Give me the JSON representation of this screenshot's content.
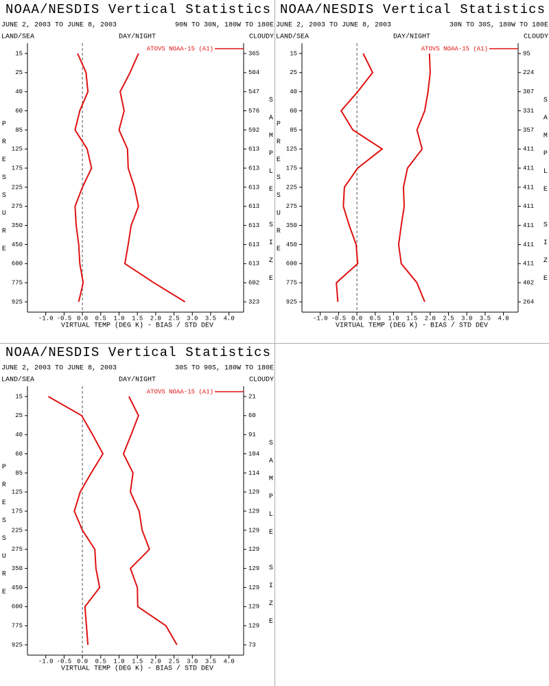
{
  "chart_data": [
    {
      "type": "line",
      "title": "NOAA/NESDIS Vertical Statistics",
      "date_range": "JUNE 2, 2003 TO JUNE 8, 2003",
      "region": "90N TO 30N, 180W TO 180E",
      "left_label": "LAND/SEA",
      "center_label": "DAY/NIGHT",
      "right_label": "CLOUDY",
      "y_label": "PRESSURE",
      "y2_label": "SAMPLE SIZE",
      "x_label": "VIRTUAL TEMP (DEG K) - BIAS / STD DEV",
      "categories": [
        "15",
        "25",
        "40",
        "60",
        "85",
        "125",
        "175",
        "225",
        "275",
        "350",
        "450",
        "600",
        "775",
        "925"
      ],
      "sample_size": [
        365,
        504,
        547,
        576,
        592,
        613,
        613,
        613,
        613,
        613,
        613,
        613,
        602,
        323
      ],
      "series": [
        {
          "name": "ATOVS NOAA-15 (A1)",
          "color": "#e01010",
          "bias": [
            -0.13,
            0.1,
            0.15,
            -0.07,
            -0.2,
            0.13,
            0.25,
            0,
            -0.2,
            -0.17,
            -0.1,
            -0.07,
            0.02,
            -0.1
          ],
          "std_dev": [
            1.53,
            1.3,
            1.03,
            1.14,
            1.0,
            1.23,
            1.25,
            1.42,
            1.53,
            1.33,
            1.25,
            1.16,
            1.95,
            2.8
          ]
        }
      ],
      "xlim": [
        -1.5,
        4.4
      ],
      "xticks": [
        {
          "value": -1,
          "label": "-1.0"
        },
        {
          "value": -0.5,
          "label": "-0.5"
        },
        {
          "value": 0,
          "label": "0.0"
        },
        0.5,
        {
          "value": 1,
          "label": "1.0"
        },
        1.5,
        {
          "value": 2,
          "label": "2.0"
        },
        2.5,
        {
          "value": 3,
          "label": "3.0"
        },
        3.5,
        {
          "value": 4,
          "label": "4.0"
        }
      ]
    },
    {
      "type": "line",
      "title": "NOAA/NESDIS Vertical Statistics",
      "date_range": "JUNE 2, 2003 TO JUNE 8, 2003",
      "region": "30N TO 30S, 180W TO 180E",
      "left_label": "LAND/SEA",
      "center_label": "DAY/NIGHT",
      "right_label": "CLOUDY",
      "y_label": "PRESSURE",
      "y2_label": "SAMPLE SIZE",
      "x_label": "VIRTUAL TEMP (DEG K) - BIAS / STD DEV",
      "categories": [
        "15",
        "25",
        "40",
        "60",
        "85",
        "125",
        "175",
        "225",
        "275",
        "350",
        "450",
        "600",
        "775",
        "925"
      ],
      "sample_size": [
        95,
        224,
        307,
        331,
        357,
        411,
        411,
        411,
        411,
        411,
        411,
        411,
        402,
        264
      ],
      "series": [
        {
          "name": "ATOVS NOAA-15 (A1)",
          "color": "#e01010",
          "bias": [
            0.17,
            0.43,
            0.02,
            -0.43,
            -0.11,
            0.69,
            0.02,
            -0.34,
            -0.37,
            -0.21,
            -0.02,
            0.02,
            -0.56,
            -0.52
          ],
          "std_dev": [
            1.98,
            2.0,
            1.94,
            1.85,
            1.64,
            1.78,
            1.38,
            1.27,
            1.29,
            1.21,
            1.14,
            1.21,
            1.64,
            1.85
          ]
        }
      ],
      "xlim": [
        -1.5,
        4.4
      ],
      "xticks": [
        {
          "value": -1,
          "label": "-1.0"
        },
        {
          "value": -0.5,
          "label": "-0.5"
        },
        {
          "value": 0,
          "label": "0.0"
        },
        0.5,
        {
          "value": 1,
          "label": "1.0"
        },
        1.5,
        {
          "value": 2,
          "label": "2.0"
        },
        2.5,
        {
          "value": 3,
          "label": "3.0"
        },
        3.5,
        {
          "value": 4,
          "label": "4.0"
        }
      ]
    },
    {
      "type": "line",
      "title": "NOAA/NESDIS Vertical Statistics",
      "date_range": "JUNE 2, 2003 TO JUNE 8, 2003",
      "region": "30S TO 90S, 180W TO 180E",
      "left_label": "LAND/SEA",
      "center_label": "DAY/NIGHT",
      "right_label": "CLOUDY",
      "y_label": "PRESSURE",
      "y2_label": "SAMPLE SIZE",
      "x_label": "VIRTUAL TEMP (DEG K) - BIAS / STD DEV",
      "categories": [
        "15",
        "25",
        "40",
        "60",
        "85",
        "125",
        "175",
        "225",
        "275",
        "350",
        "450",
        "600",
        "775",
        "925"
      ],
      "sample_size": [
        21,
        60,
        91,
        104,
        114,
        129,
        129,
        129,
        129,
        129,
        129,
        129,
        129,
        73
      ],
      "series": [
        {
          "name": "ATOVS NOAA-15 (A1)",
          "color": "#e01010",
          "bias": [
            -0.93,
            -0.02,
            0.28,
            0.56,
            0.24,
            -0.06,
            -0.22,
            0,
            0.34,
            0.37,
            0.47,
            0.07,
            0.11,
            0.15
          ],
          "std_dev": [
            1.27,
            1.53,
            1.33,
            1.12,
            1.38,
            1.31,
            1.55,
            1.63,
            1.83,
            1.31,
            1.5,
            1.51,
            2.28,
            2.58
          ]
        }
      ],
      "xlim": [
        -1.5,
        4.4
      ],
      "xticks": [
        {
          "value": -1,
          "label": "-1.0"
        },
        {
          "value": -0.5,
          "label": "-0.5"
        },
        {
          "value": 0,
          "label": "0.0"
        },
        0.5,
        {
          "value": 1,
          "label": "1.0"
        },
        1.5,
        {
          "value": 2,
          "label": "2.0"
        },
        2.5,
        {
          "value": 3,
          "label": "3.0"
        },
        3.5,
        {
          "value": 4,
          "label": "4.0"
        }
      ]
    }
  ]
}
